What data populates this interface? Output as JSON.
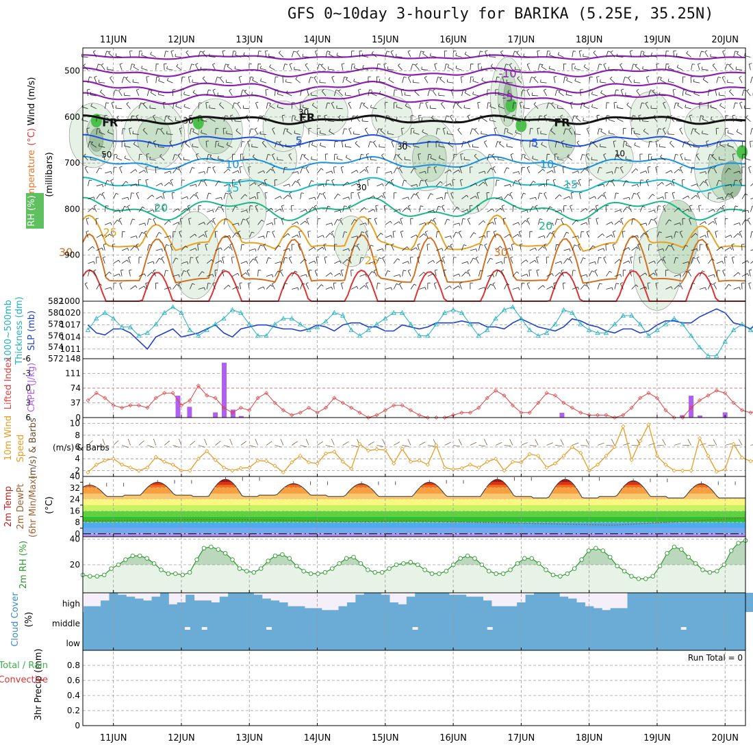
{
  "title": "GFS 0~10day 3-hourly for BARIKA (5.25E, 35.25N)",
  "colors": {
    "grid": "#9a9a9a",
    "rh_light": "#e6f2e6",
    "rh_mid": "#c7e0c7",
    "rh_dark": "#9ec09e",
    "rh_label": "#3cb04a",
    "temp_label": "#f07020",
    "purple": "#8b1fb0",
    "slp": "#1f3fd0",
    "thickness": "#20b0c0",
    "cape": "#b060f0",
    "li": "#e04040",
    "wind": "#e89a20",
    "rh2m": "#2a9a2a",
    "cloud": "#6aacd6",
    "precip_green": "#3cb04a",
    "precip_red": "#e03030"
  },
  "chart_data": [
    {
      "type": "line",
      "panel": "upper_air",
      "title": "Temperature (°C) / RH (%) / Wind (m/s)",
      "ylabel": "millibars",
      "label_parts": {
        "rh": "RH (%)",
        "temperature": "Temperature",
        "celsius": "(°C)",
        "wind": "Wind (m/s)",
        "millibars": "(millibars)"
      },
      "y_ticks": [
        500,
        600,
        700,
        800,
        900,
        1000
      ],
      "ylim": [
        450,
        1000
      ],
      "x_days": [
        "11JUN",
        "12JUN",
        "13JUN",
        "14JUN",
        "15JUN",
        "16JUN",
        "17JUN",
        "18JUN",
        "19JUN",
        "20JUN"
      ],
      "xlim_days": [
        10.55,
        20.3
      ],
      "isotherm_labels": [
        {
          "text": "-10",
          "day": 16.8,
          "p": 505
        },
        {
          "text": "-5",
          "day": 16.8,
          "p": 557
        },
        {
          "text": "FR",
          "day": 10.95,
          "p": 611
        },
        {
          "text": "FR",
          "day": 13.85,
          "p": 600
        },
        {
          "text": "FR",
          "day": 17.6,
          "p": 611
        },
        {
          "text": "5",
          "day": 13.73,
          "p": 651
        },
        {
          "text": "5",
          "day": 17.2,
          "p": 655
        },
        {
          "text": "10",
          "day": 12.75,
          "p": 702
        },
        {
          "text": "10",
          "day": 17.38,
          "p": 702
        },
        {
          "text": "15",
          "day": 12.75,
          "p": 753
        },
        {
          "text": "15",
          "day": 17.73,
          "p": 746
        },
        {
          "text": "20",
          "day": 11.7,
          "p": 796
        },
        {
          "text": "20",
          "day": 17.36,
          "p": 836
        },
        {
          "text": "25",
          "day": 10.95,
          "p": 850
        },
        {
          "text": "25",
          "day": 14.8,
          "p": 911
        },
        {
          "text": "30",
          "day": 10.3,
          "p": 893
        },
        {
          "text": "30",
          "day": 16.7,
          "p": 893
        }
      ],
      "rh_contour_labels": [
        {
          "text": "30",
          "day": 12.1,
          "p": 608
        },
        {
          "text": "50",
          "day": 10.9,
          "p": 682
        },
        {
          "text": "30",
          "day": 15.25,
          "p": 665
        },
        {
          "text": "30",
          "day": 14.65,
          "p": 753
        },
        {
          "text": "10",
          "day": 18.45,
          "p": 680
        },
        {
          "text": "30",
          "day": 13.8,
          "p": 590
        }
      ]
    },
    {
      "type": "line",
      "panel": "thickness_slp",
      "title": "1000~500mb Thickness (dm) / SLP (mb)",
      "label_parts": {
        "thickness_a": "1000~500mb",
        "thickness_b": "Thickness (dm)",
        "slp": "SLP (mb)"
      },
      "left_ticks": [
        572,
        574,
        576,
        578,
        580,
        582
      ],
      "right_ticks": [
        1011,
        1014,
        1017,
        1020
      ],
      "left_lim": [
        572,
        582
      ],
      "right_lim": [
        1008.6,
        1022.9
      ],
      "series": [
        {
          "name": "SLP (mb)",
          "values": [
            1017,
            1015,
            1014.5,
            1016,
            1016,
            1015,
            1013,
            1011,
            1014,
            1015,
            1016,
            1014,
            1014.5,
            1015,
            1016,
            1017,
            1015,
            1014,
            1016,
            1016.5,
            1017,
            1017,
            1016.5,
            1016,
            1016,
            1015.5,
            1016,
            1017,
            1016.5,
            1015.5,
            1017,
            1017.5,
            1017.5,
            1016.5,
            1016.5,
            1015.5,
            1015.5,
            1017,
            1016.5,
            1016,
            1016.5,
            1017.5,
            1017.5,
            1017.5,
            1018,
            1017.5,
            1017.5,
            1016.5,
            1016.5,
            1016,
            1017.5,
            1018.5,
            1017.5,
            1016.5,
            1016,
            1015.5,
            1016.5,
            1018.5,
            1018,
            1017,
            1016.5,
            1015.5,
            1015,
            1016,
            1016,
            1015,
            1015.5,
            1017,
            1018,
            1018,
            1017.5,
            1017.5,
            1019,
            1020,
            1021,
            1020,
            1017.5,
            1017,
            1016,
            1018,
            1018,
            1018,
            1019,
            1021
          ]
        },
        {
          "name": "Thickness (dm)",
          "values": [
            577,
            579,
            580,
            579,
            577.5,
            577.5,
            576,
            576.5,
            578,
            580,
            581,
            580,
            577,
            576,
            577,
            578,
            579,
            580.5,
            580,
            578,
            576,
            576,
            578,
            579,
            579,
            578,
            577,
            577.5,
            578.5,
            580,
            579.5,
            577,
            576,
            577,
            578,
            579,
            580,
            580,
            578,
            576,
            576,
            578,
            580,
            580.5,
            580,
            578,
            576,
            577,
            579,
            580.5,
            581,
            579,
            577,
            576,
            576.5,
            578,
            580.5,
            580,
            578,
            577,
            576.5,
            576.5,
            578,
            579.5,
            579.5,
            578,
            576,
            577,
            578,
            579,
            578,
            576,
            574,
            572.5,
            572.5,
            575,
            577,
            578,
            577,
            576,
            575,
            573,
            572.4
          ]
        }
      ]
    },
    {
      "type": "bar",
      "panel": "cape_li",
      "title": "Lifted Index / CAPE (J/kg)",
      "label_parts": {
        "li": "Lifted Index",
        "cape": "CAPE (J/kg)"
      },
      "li_ticks": [
        -6,
        -3,
        0,
        3,
        6
      ],
      "li_tick_labels": [
        "-6",
        "-3",
        "0",
        "3",
        "6"
      ],
      "cape_ticks": [
        0,
        37,
        74,
        111,
        148
      ],
      "cape_lim": [
        0,
        148
      ],
      "cape_bars": [
        {
          "day": 11.95,
          "value": 55
        },
        {
          "day": 12.12,
          "value": 27
        },
        {
          "day": 12.5,
          "value": 13
        },
        {
          "day": 12.63,
          "value": 138
        },
        {
          "day": 12.76,
          "value": 20
        },
        {
          "day": 12.88,
          "value": 4
        },
        {
          "day": 17.6,
          "value": 12
        },
        {
          "day": 19.37,
          "value": 6
        },
        {
          "day": 19.5,
          "value": 55
        },
        {
          "day": 19.63,
          "value": 5
        },
        {
          "day": 20.0,
          "value": 13
        }
      ],
      "li_values": [
        2.5,
        1,
        2,
        3.5,
        4,
        3.5,
        3.5,
        4,
        2,
        1,
        1,
        3.5,
        2.5,
        -0.5,
        1.5,
        2,
        4,
        5,
        4,
        4.5,
        2,
        1,
        3,
        4.5,
        5.5,
        5,
        4,
        5,
        4,
        2,
        3,
        4,
        5,
        6,
        5.5,
        4.5,
        3.5,
        3.5,
        4.5,
        5.5,
        6,
        6,
        6,
        5.5,
        5,
        5,
        4,
        2,
        0.5,
        1.5,
        3.5,
        5,
        5,
        3,
        1,
        1.5,
        3,
        4,
        5,
        5.5,
        5.5,
        5.5,
        6,
        5.5,
        4,
        2,
        1,
        2,
        4.5,
        6,
        6,
        4,
        2.5,
        1.5,
        0.5,
        1,
        3,
        4.5,
        5,
        4.5,
        1,
        1.5,
        2,
        1
      ]
    },
    {
      "type": "line",
      "panel": "wind10m",
      "title": "10m Wind Speed (m/s) & Barbs",
      "label_parts": {
        "line1": "10m Wind",
        "speed": "Speed",
        "barbs": "(m/s) & Barbs"
      },
      "y_ticks": [
        2,
        4,
        6,
        8,
        10
      ],
      "ylim": [
        1,
        11
      ],
      "series": [
        {
          "name": "Wind speed (m/s)",
          "values": [
            1.7,
            3,
            3.7,
            4,
            3,
            2.5,
            2,
            2.5,
            4.3,
            3.5,
            3,
            2,
            2,
            4,
            5.3,
            3.8,
            2.5,
            2,
            2.4,
            2.5,
            3.7,
            3.6,
            2.8,
            1.7,
            3.4,
            4.5,
            3.4,
            3.2,
            4.9,
            5.2,
            3.5,
            2.3,
            6.5,
            5.4,
            5.6,
            5.5,
            3.2,
            5.7,
            3.5,
            3.7,
            3,
            6.3,
            2.5,
            2.2,
            2.4,
            3,
            2.5,
            3.5,
            4,
            2,
            3.5,
            3.4,
            4.8,
            4.5,
            2.5,
            3.2,
            4.5,
            6,
            5,
            2,
            3,
            4.5,
            6,
            9.5,
            3.8,
            7,
            9.8,
            4.5,
            3,
            2,
            2,
            2,
            7.5,
            4.5,
            1.8,
            2.2,
            6.5,
            4.2,
            3.6,
            3.9,
            4.7,
            10.1,
            7.4,
            6.8
          ]
        }
      ]
    },
    {
      "type": "area",
      "panel": "temp2m",
      "title": "2m Temp / 2m DewPt (°C) (6hr Min/Max)",
      "label_parts": {
        "temp": "2m Temp",
        "dewpt": "2m DewPt",
        "minmax": "(6hr Min/Max)",
        "unit": "(°C)"
      },
      "y_ticks": [
        0,
        8,
        16,
        24,
        32,
        40
      ],
      "extra_ticks": [
        4,
        12,
        20,
        28,
        36
      ],
      "ylim": [
        -2,
        40
      ],
      "color_bands": [
        "#b48ef0",
        "#76a8f0",
        "#50aaf0",
        "#30c030",
        "#60d040",
        "#c8f060",
        "#f8f880",
        "#f8c870",
        "#f8a040",
        "#f07020",
        "#e03010",
        "#b01010"
      ],
      "temp_max_days": [
        10.65,
        11.65,
        12.65,
        13.65,
        14.65,
        15.65,
        16.65,
        17.65,
        18.65,
        19.65
      ],
      "temp_max_values": [
        34,
        36,
        38,
        35,
        35,
        36,
        38,
        38,
        37,
        35
      ],
      "temp_min_values": [
        26,
        27,
        26,
        27,
        26,
        26,
        26,
        25,
        26,
        25
      ],
      "dewpt_values": [
        9,
        9.5,
        10,
        9.5,
        8.5,
        9,
        8,
        7,
        6,
        8.5,
        11
      ]
    },
    {
      "type": "area",
      "panel": "rh2m",
      "title": "2m RH (%)",
      "y_ticks": [
        20,
        40
      ],
      "ylim": [
        -2,
        42
      ],
      "series": [
        {
          "name": "2m RH (%)",
          "values": [
            12,
            11,
            11,
            12,
            17,
            20,
            24,
            27,
            27,
            25,
            21,
            16,
            13,
            13,
            12,
            14,
            24,
            33,
            34,
            32,
            29,
            24,
            17,
            15,
            14,
            17,
            23,
            27,
            28,
            25,
            19,
            15,
            13,
            13,
            14,
            17,
            21,
            25,
            26,
            21,
            16,
            14,
            14,
            17,
            20,
            21,
            22,
            20,
            16,
            13,
            13,
            15,
            20,
            25,
            27,
            25,
            20,
            15,
            13,
            13,
            16,
            21,
            25,
            25,
            21,
            16,
            12,
            11,
            13,
            17,
            24,
            31,
            33,
            31,
            26,
            19,
            15,
            11,
            9,
            9,
            11,
            19,
            29,
            34,
            32,
            26,
            21,
            16,
            14,
            15,
            20,
            31,
            37,
            39
          ]
        }
      ]
    },
    {
      "type": "area",
      "panel": "cloud",
      "title": "Cloud Cover (%)",
      "label_parts": {
        "cloud": "Cloud Cover",
        "pct": "(%)"
      },
      "levels": [
        "high",
        "middle",
        "low"
      ],
      "high_cover": [
        0.3,
        0.3,
        0.6,
        1,
        0.9,
        0.8,
        0.7,
        0.6,
        0.8,
        1,
        0.4,
        0.5,
        0.9,
        0.6,
        0.6,
        0.5,
        0.8,
        1,
        1,
        1,
        0.9,
        0.7,
        0.6,
        0.5,
        0.3,
        0.3,
        0.2,
        0.2,
        0.1,
        0.1,
        0.3,
        0.5,
        0.9,
        1,
        1,
        0.9,
        0.5,
        0.4,
        0.8,
        1,
        1,
        1,
        1,
        0.9,
        0.9,
        0.8,
        0.8,
        0.6,
        0.3,
        0.3,
        0.3,
        0.5,
        0.9,
        1,
        1,
        1,
        0.8,
        0.7,
        0.5,
        0.3,
        0.2,
        0.1,
        0.2,
        0.2,
        1,
        1,
        1,
        1,
        1,
        1,
        1,
        1,
        1,
        1,
        1,
        1,
        1,
        1,
        1,
        1,
        1,
        1,
        1,
        1
      ]
    },
    {
      "type": "bar",
      "panel": "precip",
      "title": "3hr Precip (mm)",
      "label_parts": {
        "precip": "3hr Precip (mm)",
        "total": "Total / Rain",
        "convective": "Convective"
      },
      "y_ticks": [
        0,
        0.2,
        0.4,
        0.6,
        0.8
      ],
      "y_tick_labels": [
        "0",
        "0.2",
        "0.4",
        "0.6",
        "0.8"
      ],
      "ylim": [
        0,
        1
      ],
      "run_total_label": "Run Total = 0",
      "values": []
    }
  ]
}
